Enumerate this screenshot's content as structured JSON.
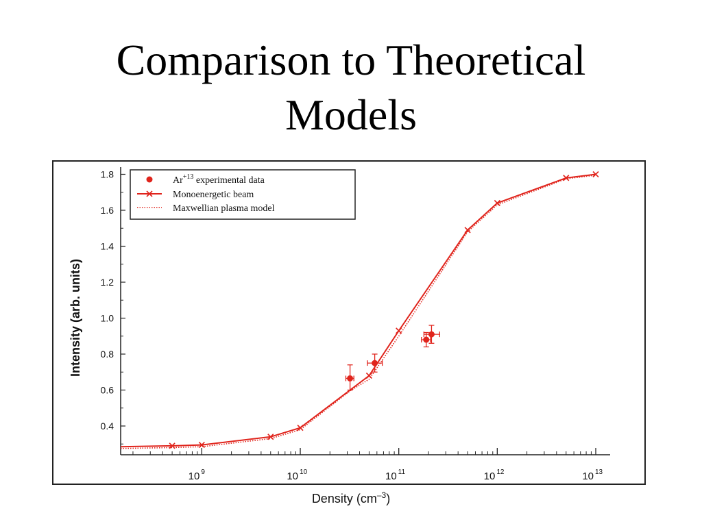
{
  "slide": {
    "title_line1": "Comparison to Theoretical",
    "title_line2": "Models"
  },
  "colors": {
    "series": "#e0241c",
    "axis": "#222222",
    "frame": "#222222"
  },
  "chart_data": {
    "type": "line",
    "xscale": "log",
    "xlim": [
      150000000.0,
      14000000000000.0
    ],
    "ylim": [
      0.24,
      1.84
    ],
    "xlabel": "Density (cm",
    "xlabel_sup": "–3",
    "xlabel_close": ")",
    "ylabel": "Intensity (arb. units)",
    "y_ticks": [
      0.4,
      0.6,
      0.8,
      1.0,
      1.2,
      1.4,
      1.6,
      1.8
    ],
    "y_tick_labels": [
      "0.4",
      "0.6",
      "0.8",
      "1.0",
      "1.2",
      "1.4",
      "1.6",
      "1.8"
    ],
    "x_major_ticks": [
      1000000000.0,
      10000000000.0,
      100000000000.0,
      1000000000000.0,
      10000000000000.0
    ],
    "x_tick_base": "10",
    "x_tick_exponents": [
      "9",
      "10",
      "11",
      "12",
      "13"
    ],
    "grid": false,
    "legend_position": "top-left",
    "legend": {
      "experimental_prefix": "Ar",
      "experimental_sup": "+13",
      "experimental_suffix": " experimental data",
      "mono": "Monoenergetic beam",
      "maxwell": "Maxwellian plasma model"
    },
    "series": [
      {
        "name": "Monoenergetic beam",
        "style": "solid-x",
        "points": [
          [
            150000000.0,
            0.285
          ],
          [
            500000000.0,
            0.29
          ],
          [
            1000000000.0,
            0.295
          ],
          [
            5000000000.0,
            0.34
          ],
          [
            10000000000.0,
            0.39
          ],
          [
            50000000000.0,
            0.68
          ],
          [
            100000000000.0,
            0.93
          ],
          [
            500000000000.0,
            1.49
          ],
          [
            1000000000000.0,
            1.64
          ],
          [
            5000000000000.0,
            1.78
          ],
          [
            10000000000000.0,
            1.8
          ]
        ]
      },
      {
        "name": "Maxwellian plasma model",
        "style": "dotted",
        "points": [
          [
            150000000.0,
            0.275
          ],
          [
            500000000.0,
            0.28
          ],
          [
            1000000000.0,
            0.285
          ],
          [
            5000000000.0,
            0.33
          ],
          [
            10000000000.0,
            0.38
          ],
          [
            32000000000.0,
            0.595
          ],
          [
            50000000000.0,
            0.66
          ],
          [
            100000000000.0,
            0.9
          ],
          [
            500000000000.0,
            1.48
          ],
          [
            1000000000000.0,
            1.63
          ],
          [
            5000000000000.0,
            1.775
          ],
          [
            10000000000000.0,
            1.795
          ]
        ]
      },
      {
        "name": "Ar+13 experimental data",
        "style": "points",
        "points": [
          {
            "x": 32000000000.0,
            "y": 0.665,
            "xerr": [
              29000000000.0,
              35000000000.0
            ],
            "yerr": [
              0.6,
              0.74
            ]
          },
          {
            "x": 57000000000.0,
            "y": 0.75,
            "xerr": [
              48000000000.0,
              68000000000.0
            ],
            "yerr": [
              0.7,
              0.8
            ]
          },
          {
            "x": 190000000000.0,
            "y": 0.88,
            "xerr": [
              170000000000.0,
              210000000000.0
            ],
            "yerr": [
              0.84,
              0.92
            ]
          },
          {
            "x": 215000000000.0,
            "y": 0.91,
            "xerr": [
              180000000000.0,
              260000000000.0
            ],
            "yerr": [
              0.86,
              0.96
            ]
          }
        ]
      }
    ]
  }
}
